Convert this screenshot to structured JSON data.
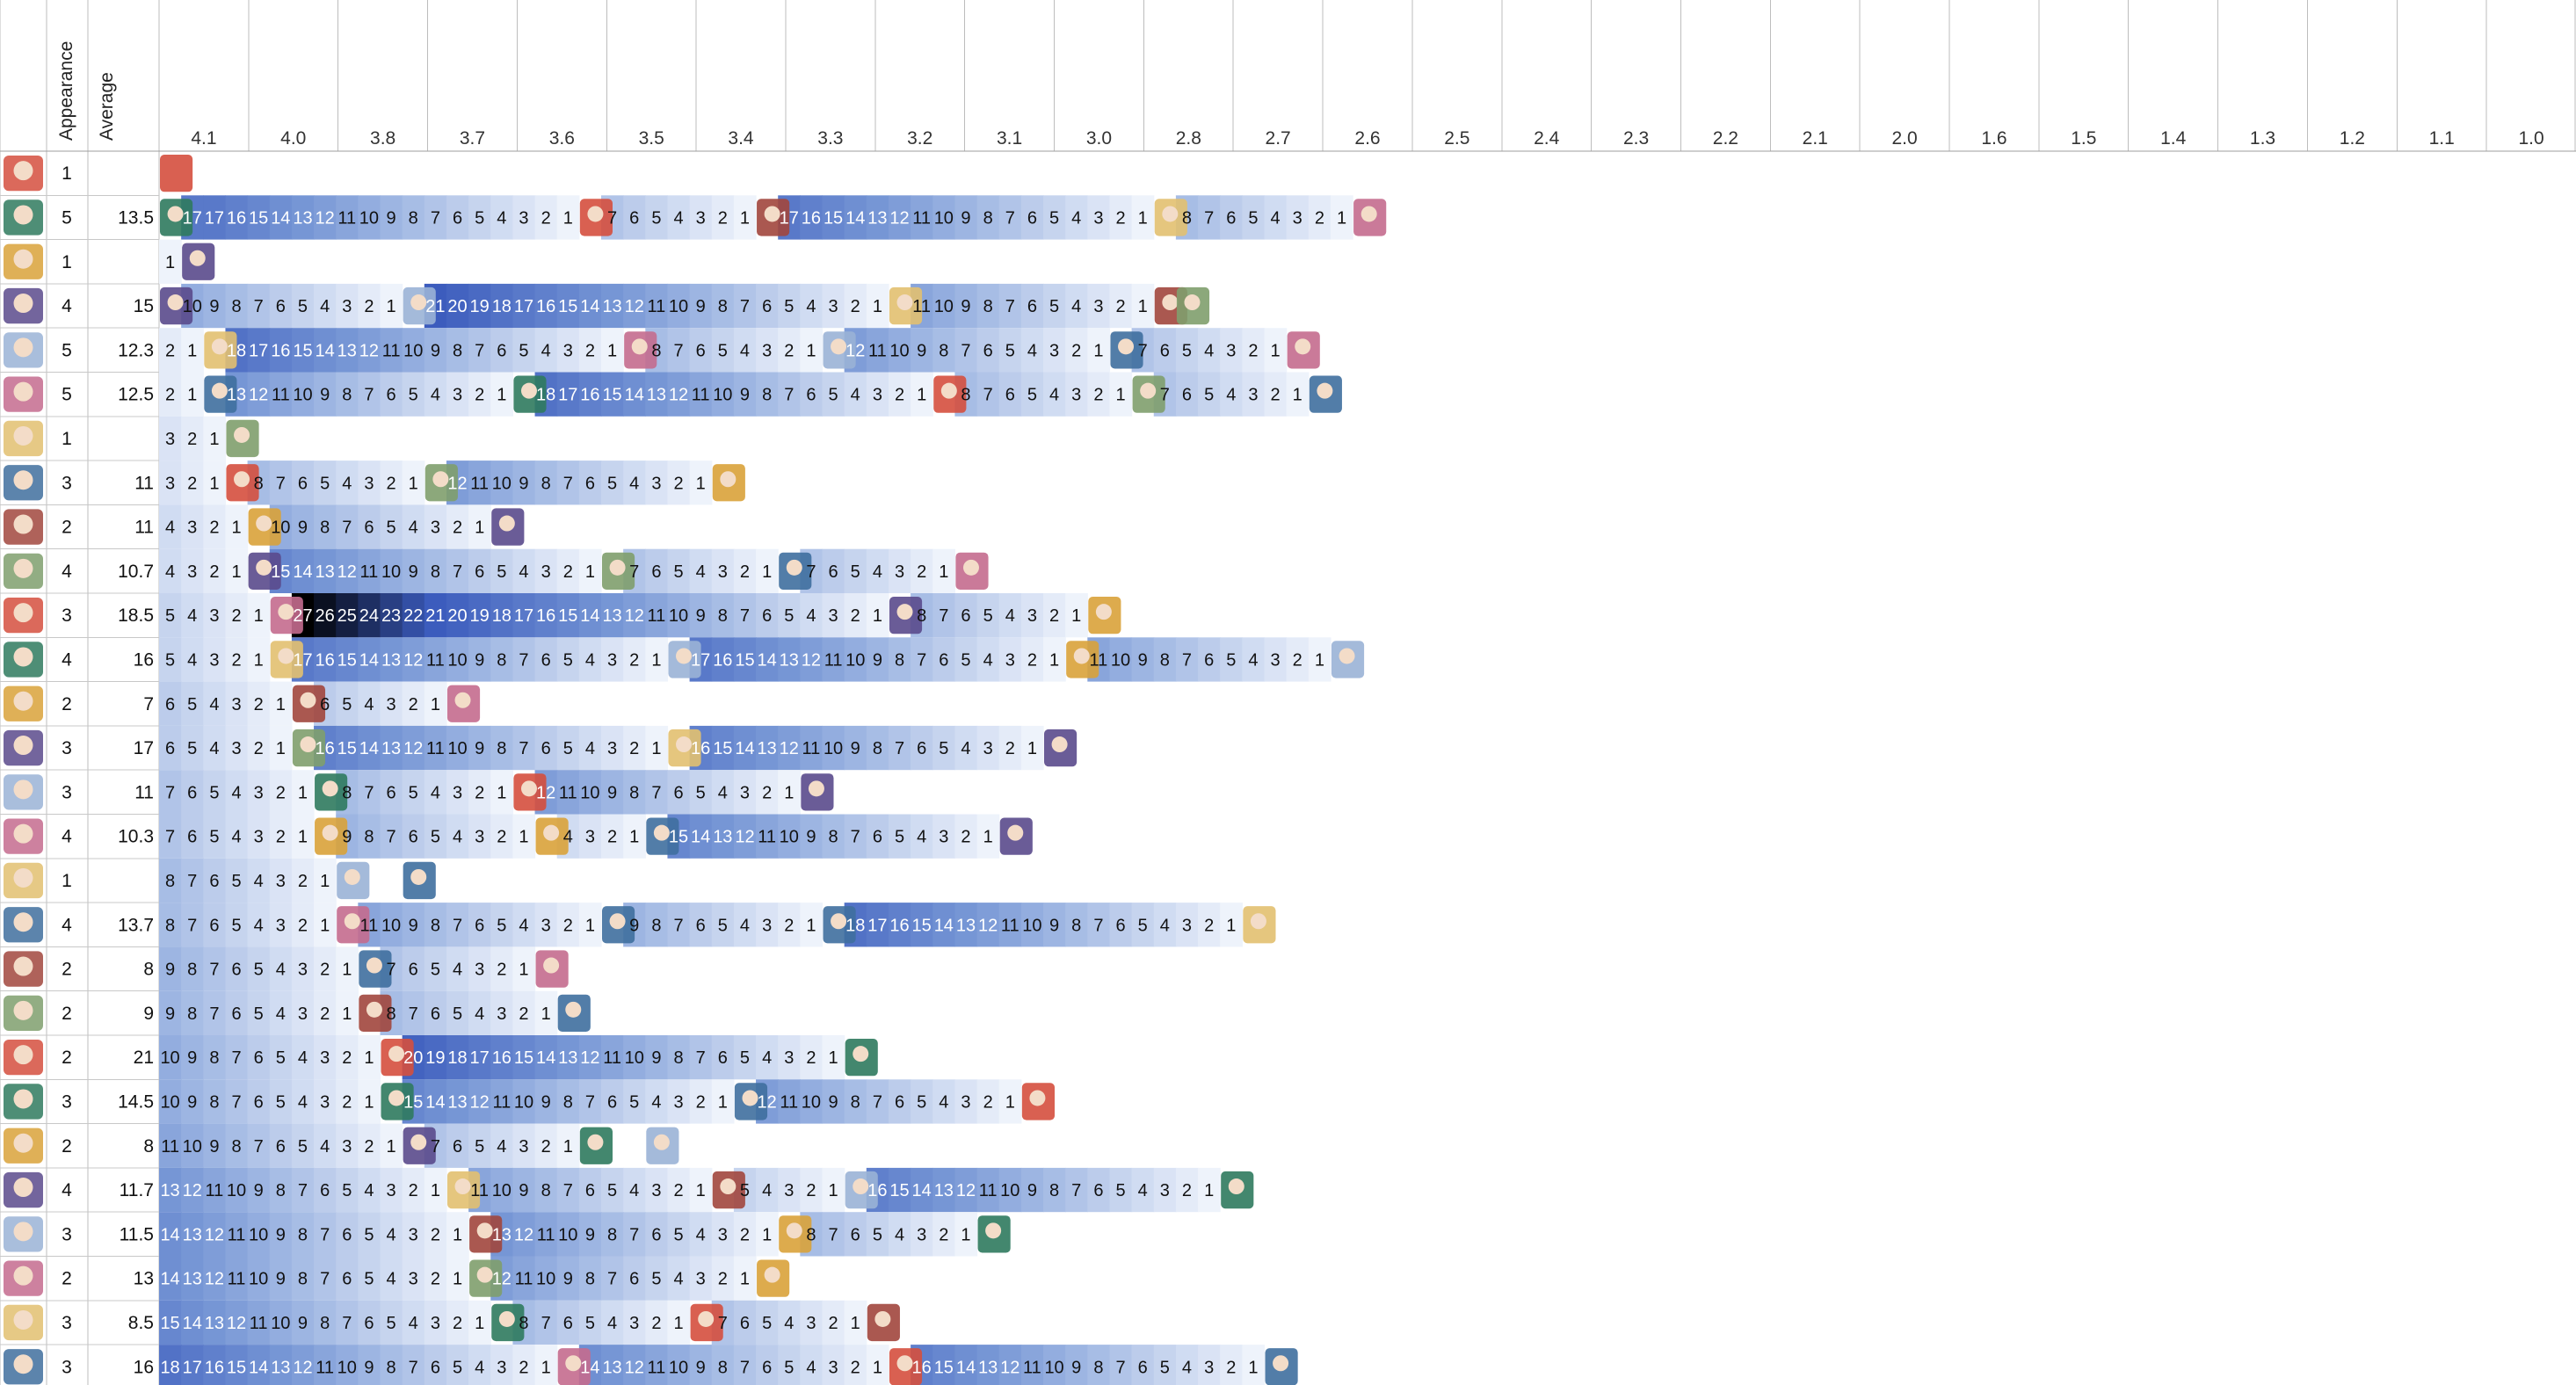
{
  "header": {
    "appearance_label": "Appearance",
    "average_label": "Average",
    "versions": [
      "4.1",
      "4.0",
      "3.8",
      "3.7",
      "3.6",
      "3.5",
      "3.4",
      "3.3",
      "3.2",
      "3.1",
      "3.0",
      "2.8",
      "2.7",
      "2.6",
      "2.5",
      "2.4",
      "2.3",
      "2.2",
      "2.1",
      "2.0",
      "1.6",
      "1.5",
      "1.4",
      "1.3",
      "1.2",
      "1.1",
      "1.0"
    ]
  },
  "colors": {
    "scale": [
      "#ffffff",
      "#d7e1f3",
      "#4a70c2",
      "#000000"
    ],
    "banner_colors": [
      "#d54f3e",
      "#2f7a5e",
      "#d9a23a",
      "#5a4a8c",
      "#9ab3d6",
      "#c46b8e",
      "#e2c070",
      "#3f6f9e",
      "#a1463d",
      "#7f9f6d"
    ]
  },
  "chart_data": {
    "type": "heatmap",
    "description_columns": [
      "Appearance",
      "Average"
    ],
    "rows": [
      {
        "appearance": "1",
        "average": "",
        "cells": []
      },
      {
        "appearance": "5",
        "average": "13.5",
        "cells": [
          "P",
          "17",
          "17",
          "16",
          "15",
          "14",
          "13",
          "12",
          "11",
          "10",
          "9",
          "8",
          "7",
          "6",
          "5",
          "4",
          "3",
          "2",
          "1",
          "P",
          "7",
          "6",
          "5",
          "4",
          "3",
          "2",
          "1",
          "P",
          "17",
          "16",
          "15",
          "14",
          "13",
          "12",
          "11",
          "10",
          "9",
          "8",
          "7",
          "6",
          "5",
          "4",
          "3",
          "2",
          "1",
          "P",
          "8",
          "7",
          "6",
          "5",
          "4",
          "3",
          "2",
          "1",
          "P"
        ]
      },
      {
        "appearance": "1",
        "average": "",
        "cells": [
          "1",
          "P"
        ]
      },
      {
        "appearance": "4",
        "average": "15",
        "cells": [
          "P",
          "10",
          "9",
          "8",
          "7",
          "6",
          "5",
          "4",
          "3",
          "2",
          "1",
          "P",
          "21",
          "20",
          "19",
          "18",
          "17",
          "16",
          "15",
          "14",
          "13",
          "12",
          "11",
          "10",
          "9",
          "8",
          "7",
          "6",
          "5",
          "4",
          "3",
          "2",
          "1",
          "P",
          "11",
          "10",
          "9",
          "8",
          "7",
          "6",
          "5",
          "4",
          "3",
          "2",
          "1",
          "P",
          "P"
        ]
      },
      {
        "appearance": "5",
        "average": "12.3",
        "cells": [
          "2",
          "1",
          "P",
          "18",
          "17",
          "16",
          "15",
          "14",
          "13",
          "12",
          "11",
          "10",
          "9",
          "8",
          "7",
          "6",
          "5",
          "4",
          "3",
          "2",
          "1",
          "P",
          "8",
          "7",
          "6",
          "5",
          "4",
          "3",
          "2",
          "1",
          "P",
          "12",
          "11",
          "10",
          "9",
          "8",
          "7",
          "6",
          "5",
          "4",
          "3",
          "2",
          "1",
          "P",
          "7",
          "6",
          "5",
          "4",
          "3",
          "2",
          "1",
          "P"
        ]
      },
      {
        "appearance": "5",
        "average": "12.5",
        "cells": [
          "2",
          "1",
          "P",
          "13",
          "12",
          "11",
          "10",
          "9",
          "8",
          "7",
          "6",
          "5",
          "4",
          "3",
          "2",
          "1",
          "P",
          "18",
          "17",
          "16",
          "15",
          "14",
          "13",
          "12",
          "11",
          "10",
          "9",
          "8",
          "7",
          "6",
          "5",
          "4",
          "3",
          "2",
          "1",
          "P",
          "8",
          "7",
          "6",
          "5",
          "4",
          "3",
          "2",
          "1",
          "P",
          "7",
          "6",
          "5",
          "4",
          "3",
          "2",
          "1",
          "P"
        ]
      },
      {
        "appearance": "1",
        "average": "",
        "cells": [
          "3",
          "2",
          "1",
          "P"
        ]
      },
      {
        "appearance": "3",
        "average": "11",
        "cells": [
          "3",
          "2",
          "1",
          "P",
          "8",
          "7",
          "6",
          "5",
          "4",
          "3",
          "2",
          "1",
          "P",
          "12",
          "11",
          "10",
          "9",
          "8",
          "7",
          "6",
          "5",
          "4",
          "3",
          "2",
          "1",
          "P"
        ]
      },
      {
        "appearance": "2",
        "average": "11",
        "cells": [
          "4",
          "3",
          "2",
          "1",
          "P",
          "10",
          "9",
          "8",
          "7",
          "6",
          "5",
          "4",
          "3",
          "2",
          "1",
          "P"
        ]
      },
      {
        "appearance": "4",
        "average": "10.7",
        "cells": [
          "4",
          "3",
          "2",
          "1",
          "P",
          "15",
          "14",
          "13",
          "12",
          "11",
          "10",
          "9",
          "8",
          "7",
          "6",
          "5",
          "4",
          "3",
          "2",
          "1",
          "P",
          "7",
          "6",
          "5",
          "4",
          "3",
          "2",
          "1",
          "P",
          "7",
          "6",
          "5",
          "4",
          "3",
          "2",
          "1",
          "P"
        ]
      },
      {
        "appearance": "3",
        "average": "18.5",
        "cells": [
          "5",
          "4",
          "3",
          "2",
          "1",
          "P",
          "27",
          "26",
          "25",
          "24",
          "23",
          "22",
          "21",
          "20",
          "19",
          "18",
          "17",
          "16",
          "15",
          "14",
          "13",
          "12",
          "11",
          "10",
          "9",
          "8",
          "7",
          "6",
          "5",
          "4",
          "3",
          "2",
          "1",
          "P",
          "8",
          "7",
          "6",
          "5",
          "4",
          "3",
          "2",
          "1",
          "P"
        ]
      },
      {
        "appearance": "4",
        "average": "16",
        "cells": [
          "5",
          "4",
          "3",
          "2",
          "1",
          "P",
          "17",
          "16",
          "15",
          "14",
          "13",
          "12",
          "11",
          "10",
          "9",
          "8",
          "7",
          "6",
          "5",
          "4",
          "3",
          "2",
          "1",
          "P",
          "17",
          "16",
          "15",
          "14",
          "13",
          "12",
          "11",
          "10",
          "9",
          "8",
          "7",
          "6",
          "5",
          "4",
          "3",
          "2",
          "1",
          "P",
          "11",
          "10",
          "9",
          "8",
          "7",
          "6",
          "5",
          "4",
          "3",
          "2",
          "1",
          "P"
        ]
      },
      {
        "appearance": "2",
        "average": "7",
        "cells": [
          "6",
          "5",
          "4",
          "3",
          "2",
          "1",
          "P",
          "6",
          "5",
          "4",
          "3",
          "2",
          "1",
          "P"
        ]
      },
      {
        "appearance": "3",
        "average": "17",
        "cells": [
          "6",
          "5",
          "4",
          "3",
          "2",
          "1",
          "P",
          "16",
          "15",
          "14",
          "13",
          "12",
          "11",
          "10",
          "9",
          "8",
          "7",
          "6",
          "5",
          "4",
          "3",
          "2",
          "1",
          "P",
          "16",
          "15",
          "14",
          "13",
          "12",
          "11",
          "10",
          "9",
          "8",
          "7",
          "6",
          "5",
          "4",
          "3",
          "2",
          "1",
          "P"
        ]
      },
      {
        "appearance": "3",
        "average": "11",
        "cells": [
          "7",
          "6",
          "5",
          "4",
          "3",
          "2",
          "1",
          "P",
          "8",
          "7",
          "6",
          "5",
          "4",
          "3",
          "2",
          "1",
          "P",
          "12",
          "11",
          "10",
          "9",
          "8",
          "7",
          "6",
          "5",
          "4",
          "3",
          "2",
          "1",
          "P"
        ]
      },
      {
        "appearance": "4",
        "average": "10.3",
        "cells": [
          "7",
          "6",
          "5",
          "4",
          "3",
          "2",
          "1",
          "P",
          "9",
          "8",
          "7",
          "6",
          "5",
          "4",
          "3",
          "2",
          "1",
          "P",
          "4",
          "3",
          "2",
          "1",
          "P",
          "15",
          "14",
          "13",
          "12",
          "11",
          "10",
          "9",
          "8",
          "7",
          "6",
          "5",
          "4",
          "3",
          "2",
          "1",
          "P"
        ]
      },
      {
        "appearance": "1",
        "average": "",
        "cells": [
          "8",
          "7",
          "6",
          "5",
          "4",
          "3",
          "2",
          "1",
          "P",
          "",
          "",
          "P"
        ]
      },
      {
        "appearance": "4",
        "average": "13.7",
        "cells": [
          "8",
          "7",
          "6",
          "5",
          "4",
          "3",
          "2",
          "1",
          "P",
          "11",
          "10",
          "9",
          "8",
          "7",
          "6",
          "5",
          "4",
          "3",
          "2",
          "1",
          "P",
          "9",
          "8",
          "7",
          "6",
          "5",
          "4",
          "3",
          "2",
          "1",
          "P",
          "18",
          "17",
          "16",
          "15",
          "14",
          "13",
          "12",
          "11",
          "10",
          "9",
          "8",
          "7",
          "6",
          "5",
          "4",
          "3",
          "2",
          "1",
          "P"
        ]
      },
      {
        "appearance": "2",
        "average": "8",
        "cells": [
          "9",
          "8",
          "7",
          "6",
          "5",
          "4",
          "3",
          "2",
          "1",
          "P",
          "7",
          "6",
          "5",
          "4",
          "3",
          "2",
          "1",
          "P"
        ]
      },
      {
        "appearance": "2",
        "average": "9",
        "cells": [
          "9",
          "8",
          "7",
          "6",
          "5",
          "4",
          "3",
          "2",
          "1",
          "P",
          "8",
          "7",
          "6",
          "5",
          "4",
          "3",
          "2",
          "1",
          "P"
        ]
      },
      {
        "appearance": "2",
        "average": "21",
        "cells": [
          "10",
          "9",
          "8",
          "7",
          "6",
          "5",
          "4",
          "3",
          "2",
          "1",
          "P",
          "20",
          "19",
          "18",
          "17",
          "16",
          "15",
          "14",
          "13",
          "12",
          "11",
          "10",
          "9",
          "8",
          "7",
          "6",
          "5",
          "4",
          "3",
          "2",
          "1",
          "P"
        ]
      },
      {
        "appearance": "3",
        "average": "14.5",
        "cells": [
          "10",
          "9",
          "8",
          "7",
          "6",
          "5",
          "4",
          "3",
          "2",
          "1",
          "P",
          "15",
          "14",
          "13",
          "12",
          "11",
          "10",
          "9",
          "8",
          "7",
          "6",
          "5",
          "4",
          "3",
          "2",
          "1",
          "P",
          "12",
          "11",
          "10",
          "9",
          "8",
          "7",
          "6",
          "5",
          "4",
          "3",
          "2",
          "1",
          "P"
        ]
      },
      {
        "appearance": "2",
        "average": "8",
        "cells": [
          "11",
          "10",
          "9",
          "8",
          "7",
          "6",
          "5",
          "4",
          "3",
          "2",
          "1",
          "P",
          "7",
          "6",
          "5",
          "4",
          "3",
          "2",
          "1",
          "P",
          "",
          "",
          "P"
        ]
      },
      {
        "appearance": "4",
        "average": "11.7",
        "cells": [
          "13",
          "12",
          "11",
          "10",
          "9",
          "8",
          "7",
          "6",
          "5",
          "4",
          "3",
          "2",
          "1",
          "P",
          "11",
          "10",
          "9",
          "8",
          "7",
          "6",
          "5",
          "4",
          "3",
          "2",
          "1",
          "P",
          "5",
          "4",
          "3",
          "2",
          "1",
          "P",
          "16",
          "15",
          "14",
          "13",
          "12",
          "11",
          "10",
          "9",
          "8",
          "7",
          "6",
          "5",
          "4",
          "3",
          "2",
          "1",
          "P"
        ]
      },
      {
        "appearance": "3",
        "average": "11.5",
        "cells": [
          "14",
          "13",
          "12",
          "11",
          "10",
          "9",
          "8",
          "7",
          "6",
          "5",
          "4",
          "3",
          "2",
          "1",
          "P",
          "13",
          "12",
          "11",
          "10",
          "9",
          "8",
          "7",
          "6",
          "5",
          "4",
          "3",
          "2",
          "1",
          "P",
          "8",
          "7",
          "6",
          "5",
          "4",
          "3",
          "2",
          "1",
          "P"
        ]
      },
      {
        "appearance": "2",
        "average": "13",
        "cells": [
          "14",
          "13",
          "12",
          "11",
          "10",
          "9",
          "8",
          "7",
          "6",
          "5",
          "4",
          "3",
          "2",
          "1",
          "P",
          "12",
          "11",
          "10",
          "9",
          "8",
          "7",
          "6",
          "5",
          "4",
          "3",
          "2",
          "1",
          "P"
        ]
      },
      {
        "appearance": "3",
        "average": "8.5",
        "cells": [
          "15",
          "14",
          "13",
          "12",
          "11",
          "10",
          "9",
          "8",
          "7",
          "6",
          "5",
          "4",
          "3",
          "2",
          "1",
          "P",
          "8",
          "7",
          "6",
          "5",
          "4",
          "3",
          "2",
          "1",
          "P",
          "7",
          "6",
          "5",
          "4",
          "3",
          "2",
          "1",
          "P"
        ]
      },
      {
        "appearance": "3",
        "average": "16",
        "cells": [
          "18",
          "17",
          "16",
          "15",
          "14",
          "13",
          "12",
          "11",
          "10",
          "9",
          "8",
          "7",
          "6",
          "5",
          "4",
          "3",
          "2",
          "1",
          "P",
          "14",
          "13",
          "12",
          "11",
          "10",
          "9",
          "8",
          "7",
          "6",
          "5",
          "4",
          "3",
          "2",
          "1",
          "P",
          "16",
          "15",
          "14",
          "13",
          "12",
          "11",
          "10",
          "9",
          "8",
          "7",
          "6",
          "5",
          "4",
          "3",
          "2",
          "1",
          "P"
        ]
      }
    ],
    "value_range": [
      1,
      27
    ],
    "legend": "none",
    "grid": true
  }
}
